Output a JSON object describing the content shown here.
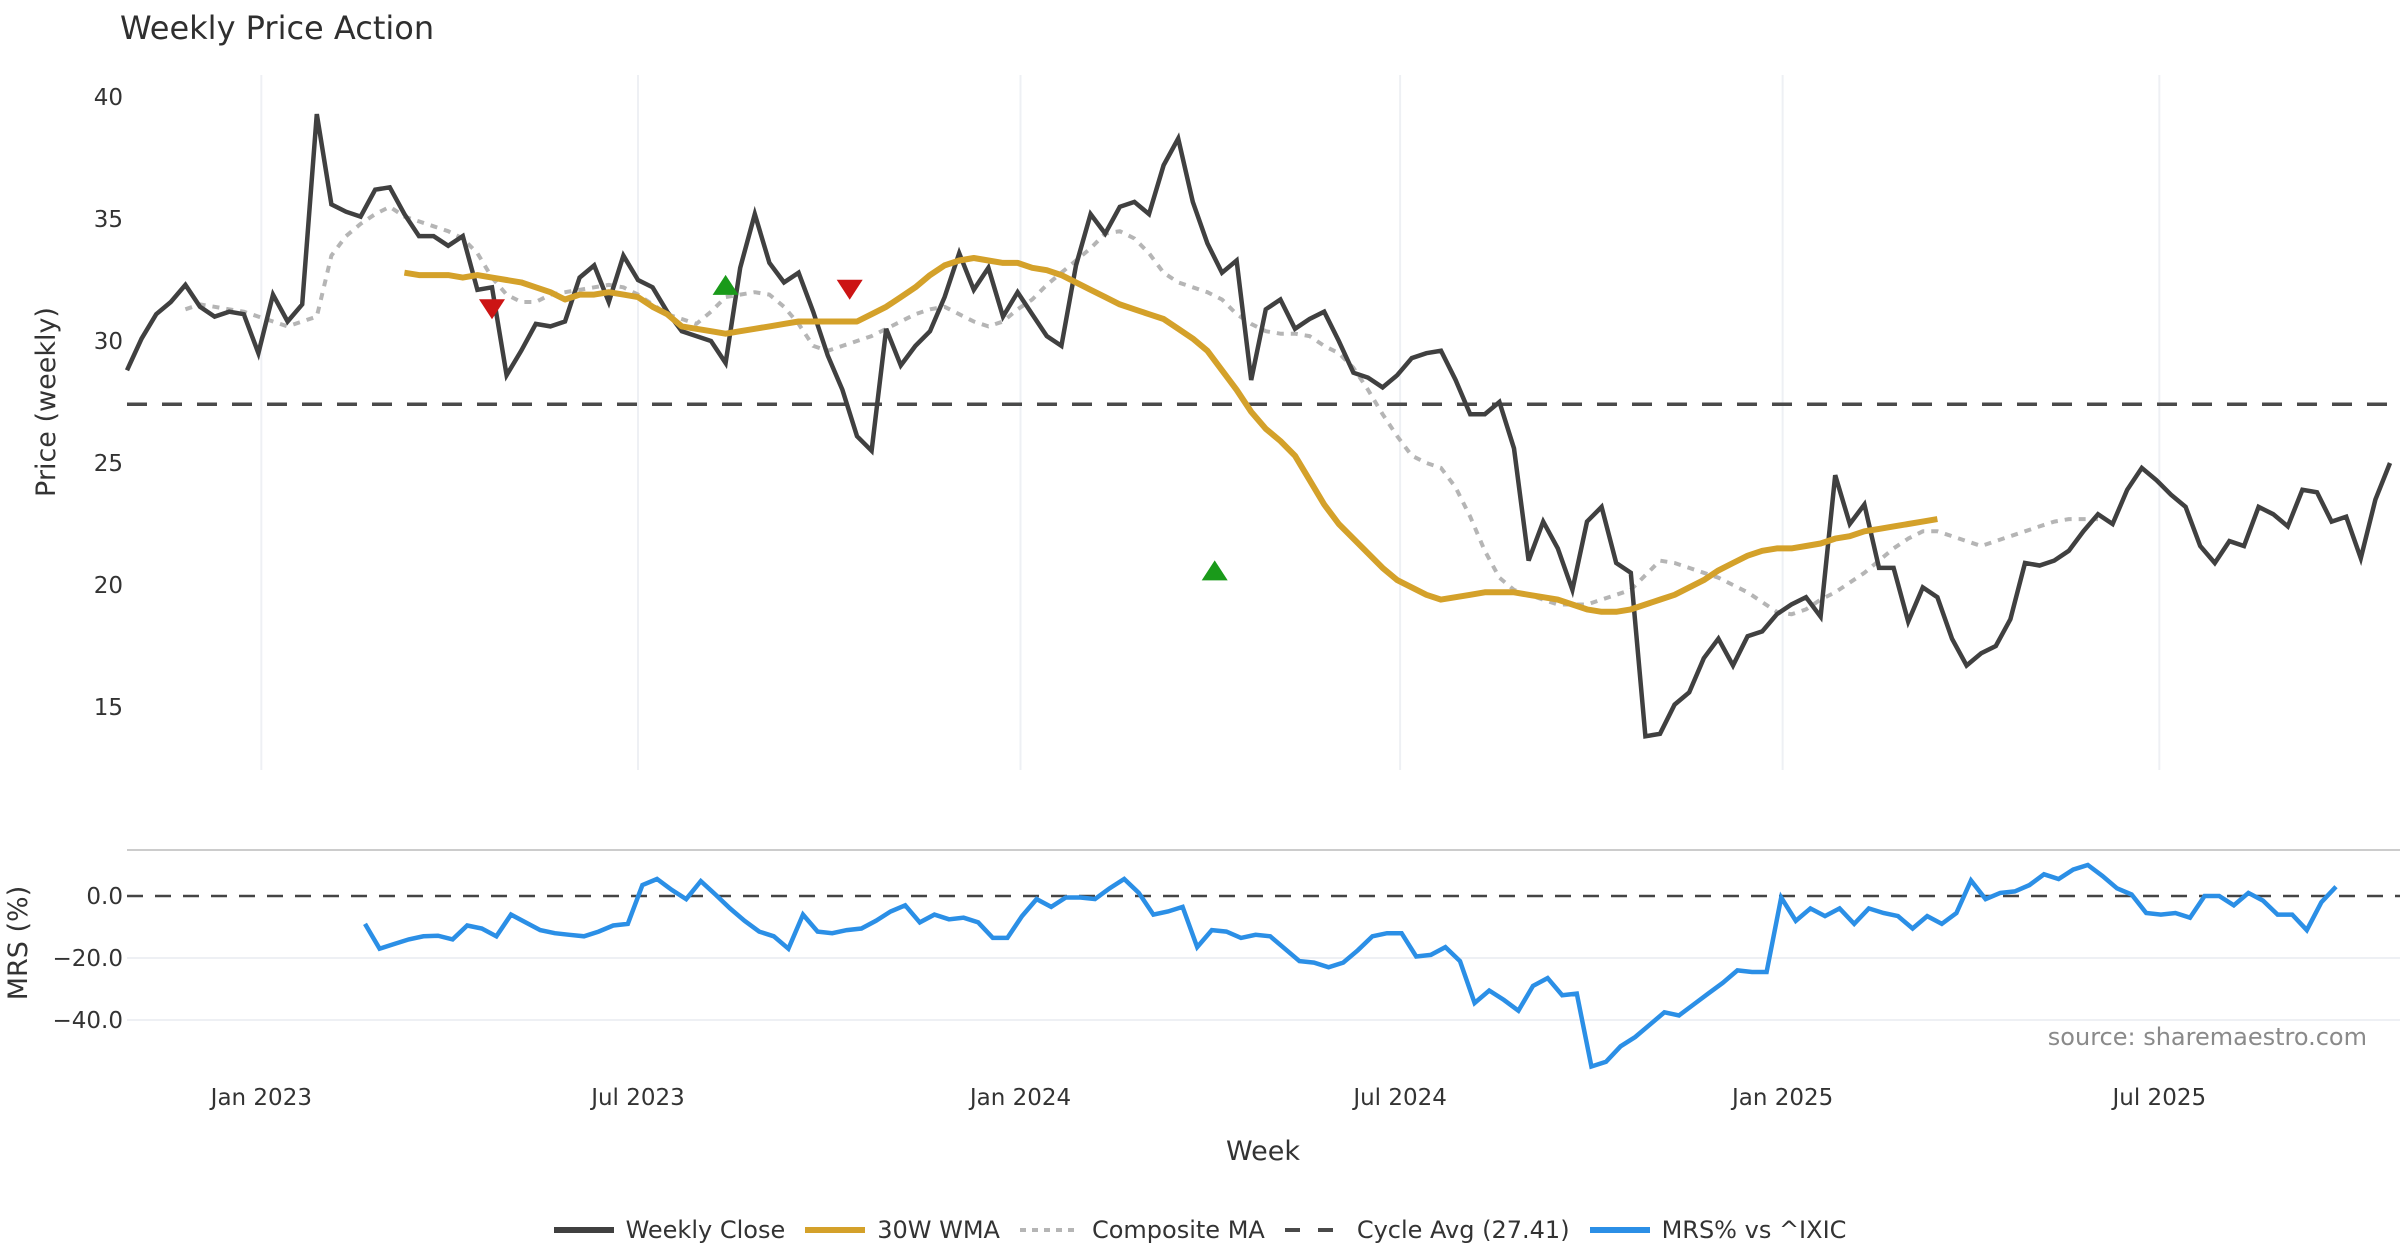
{
  "colors": {
    "weekly_close": "#404040",
    "wma": "#d4a12a",
    "composite_ma": "#b5b5b5",
    "cycle_avg": "#4a4a4a",
    "mrs": "#2b8fe6",
    "buy_marker": "#1a9a1a",
    "sell_marker": "#cc1414",
    "grid": "#eef0f4",
    "separator": "#cccccc"
  },
  "chart_data": [
    {
      "type": "line",
      "title": "Weekly Price Action",
      "xlabel": "Week",
      "ylabel": "Price (weekly)",
      "ylim": [
        12.5,
        41
      ],
      "yticks": [
        40,
        35,
        30,
        25,
        20,
        15
      ],
      "x_unit": "week index (0 = first plotted week, Nov 2022)",
      "xlim": [
        0,
        155.5
      ],
      "xticks": [
        {
          "week": 9.2,
          "label": "Jan 2023"
        },
        {
          "week": 35,
          "label": "Jul 2023"
        },
        {
          "week": 61.2,
          "label": "Jan 2024"
        },
        {
          "week": 87.2,
          "label": "Jul 2024"
        },
        {
          "week": 113.4,
          "label": "Jan 2025"
        },
        {
          "week": 139.2,
          "label": "Jul 2025"
        }
      ],
      "grid": true,
      "series": [
        {
          "name": "Weekly Close",
          "start_week": 0,
          "values": [
            28.8,
            30.1,
            31.1,
            31.6,
            32.3,
            31.4,
            31.0,
            31.2,
            31.1,
            29.5,
            31.9,
            30.8,
            31.5,
            39.3,
            35.6,
            35.3,
            35.1,
            36.2,
            36.3,
            35.2,
            34.3,
            34.3,
            33.9,
            34.3,
            32.1,
            32.2,
            28.6,
            29.6,
            30.7,
            30.6,
            30.8,
            32.6,
            33.1,
            31.6,
            33.5,
            32.5,
            32.2,
            31.2,
            30.4,
            30.2,
            30.0,
            29.1,
            33.0,
            35.2,
            33.2,
            32.4,
            32.8,
            31.2,
            29.4,
            28.0,
            26.1,
            25.5,
            30.5,
            29.0,
            29.8,
            30.4,
            31.8,
            33.6,
            32.1,
            33.0,
            31.0,
            32.0,
            31.1,
            30.2,
            29.8,
            33.1,
            35.2,
            34.4,
            35.5,
            35.7,
            35.2,
            37.2,
            38.3,
            35.7,
            34.0,
            32.8,
            33.3,
            28.4,
            31.3,
            31.7,
            30.5,
            30.9,
            31.2,
            30.0,
            28.7,
            28.5,
            28.1,
            28.6,
            29.3,
            29.5,
            29.6,
            28.4,
            27.0,
            27.0,
            27.5,
            25.6,
            21.0,
            22.6,
            21.5,
            19.8,
            22.6,
            23.2,
            20.9,
            20.5,
            13.8,
            13.9,
            15.1,
            15.6,
            17.0,
            17.8,
            16.7,
            17.9,
            18.1,
            18.8,
            19.2,
            19.5,
            18.7,
            24.5,
            22.5,
            23.3,
            20.7,
            20.7,
            18.5,
            19.9,
            19.5,
            17.8,
            16.7,
            17.2,
            17.5,
            18.6,
            20.9,
            20.8,
            21.0,
            21.4,
            22.2,
            22.9,
            22.5,
            23.9,
            24.8,
            24.3,
            23.7,
            23.2,
            21.6,
            20.9,
            21.8,
            21.6,
            23.2,
            22.9,
            22.4,
            23.9,
            23.8,
            22.6,
            22.8,
            21.1,
            23.5,
            25.0
          ]
        },
        {
          "name": "30W WMA",
          "start_week": 19,
          "values": [
            32.8,
            32.7,
            32.7,
            32.7,
            32.6,
            32.7,
            32.6,
            32.5,
            32.4,
            32.2,
            32.0,
            31.7,
            31.9,
            31.9,
            32.0,
            31.9,
            31.8,
            31.4,
            31.1,
            30.6,
            30.5,
            30.4,
            30.3,
            30.4,
            30.5,
            30.6,
            30.7,
            30.8,
            30.8,
            30.8,
            30.8,
            30.8,
            31.1,
            31.4,
            31.8,
            32.2,
            32.7,
            33.1,
            33.3,
            33.4,
            33.3,
            33.2,
            33.2,
            33.0,
            32.9,
            32.7,
            32.4,
            32.1,
            31.8,
            31.5,
            31.3,
            31.1,
            30.9,
            30.5,
            30.1,
            29.6,
            28.8,
            28.0,
            27.1,
            26.4,
            25.9,
            25.3,
            24.3,
            23.3,
            22.5,
            21.9,
            21.3,
            20.7,
            20.2,
            19.9,
            19.6,
            19.4,
            19.5,
            19.6,
            19.7,
            19.7,
            19.7,
            19.6,
            19.5,
            19.4,
            19.2,
            19.0,
            18.9,
            18.9,
            19.0,
            19.2,
            19.4,
            19.6,
            19.9,
            20.2,
            20.6,
            20.9,
            21.2,
            21.4,
            21.5,
            21.5,
            21.6,
            21.7,
            21.9,
            22.0,
            22.2,
            22.3,
            22.4,
            22.5,
            22.6,
            22.7
          ]
        },
        {
          "name": "Composite MA",
          "start_week": 4,
          "values": [
            31.3,
            31.5,
            31.4,
            31.3,
            31.2,
            31.0,
            30.8,
            30.6,
            30.8,
            31.0,
            33.5,
            34.3,
            34.8,
            35.2,
            35.5,
            35.1,
            34.9,
            34.7,
            34.5,
            34.2,
            33.6,
            32.6,
            31.9,
            31.6,
            31.6,
            31.9,
            32.0,
            32.1,
            32.2,
            32.3,
            32.2,
            31.9,
            31.5,
            31.1,
            30.9,
            30.7,
            31.2,
            31.8,
            31.9,
            32.0,
            31.9,
            31.4,
            30.7,
            29.8,
            29.6,
            29.8,
            30.0,
            30.2,
            30.5,
            30.8,
            31.1,
            31.3,
            31.4,
            31.1,
            30.8,
            30.6,
            30.8,
            31.3,
            31.7,
            32.3,
            32.8,
            33.3,
            33.8,
            34.4,
            34.5,
            34.2,
            33.6,
            32.8,
            32.4,
            32.2,
            32.0,
            31.7,
            31.1,
            30.7,
            30.4,
            30.3,
            30.3,
            30.2,
            29.8,
            29.5,
            28.9,
            28.0,
            27.0,
            26.1,
            25.3,
            25.0,
            24.8,
            24.0,
            22.8,
            21.4,
            20.3,
            19.8,
            19.6,
            19.4,
            19.2,
            19.2,
            19.2,
            19.4,
            19.6,
            19.8,
            20.4,
            21.0,
            20.9,
            20.7,
            20.5,
            20.3,
            20.0,
            19.7,
            19.3,
            18.9,
            18.8,
            19.0,
            19.4,
            19.7,
            20.1,
            20.5,
            21.0,
            21.5,
            21.9,
            22.2,
            22.2,
            22.0,
            21.8,
            21.6,
            21.8,
            22.0,
            22.2,
            22.4,
            22.6,
            22.7,
            22.7,
            22.7
          ]
        },
        {
          "name": "Cycle Avg (27.41)",
          "constant": 27.41
        }
      ],
      "markers": [
        {
          "type": "sell",
          "week": 25,
          "value": 31.3
        },
        {
          "type": "buy",
          "week": 41,
          "value": 32.3
        },
        {
          "type": "sell",
          "week": 49.5,
          "value": 32.1
        },
        {
          "type": "buy",
          "week": 74.5,
          "value": 20.6
        }
      ]
    },
    {
      "type": "line",
      "xlabel": "Week",
      "ylabel": "MRS (%)",
      "ylim": [
        -57,
        18
      ],
      "yticks": [
        {
          "value": 0,
          "label": "0.0"
        },
        {
          "value": -20,
          "label": "−20.0"
        },
        {
          "value": -40,
          "label": "−40.0"
        }
      ],
      "reference_line": 0,
      "series": [
        {
          "name": "MRS% vs ^IXIC",
          "start_week": 16.3,
          "values": [
            -9,
            -17,
            -15.5,
            -14,
            -13,
            -12.8,
            -14,
            -9.5,
            -10.5,
            -13,
            -6,
            -8.5,
            -11,
            -12,
            -12.5,
            -13,
            -11.5,
            -9.5,
            -9,
            3.5,
            5.5,
            2,
            -1,
            4.8,
            0.5,
            -4,
            -8,
            -11.5,
            -13,
            -17,
            -6,
            -11.5,
            -12,
            -11,
            -10.5,
            -8,
            -5,
            -3,
            -8.5,
            -6,
            -7.5,
            -7,
            -8.5,
            -13.5,
            -13.5,
            -6.5,
            -1,
            -3.5,
            -0.5,
            -0.5,
            -1,
            2.5,
            5.5,
            1,
            -6,
            -5,
            -3.5,
            -16.5,
            -11,
            -11.5,
            -13.5,
            -12.5,
            -13,
            -17,
            -21,
            -21.5,
            -23,
            -21.5,
            -17.5,
            -13,
            -12,
            -12,
            -19.5,
            -19,
            -16.5,
            -21,
            -34.5,
            -30.5,
            -33.5,
            -37,
            -29,
            -26.5,
            -32,
            -31.5,
            -55,
            -53.5,
            -48.5,
            -45.5,
            -41.5,
            -37.5,
            -38.5,
            -35,
            -31.5,
            -28,
            -24,
            -24.5,
            -24.5,
            -0.5,
            -8,
            -4,
            -6.5,
            -4,
            -9,
            -4,
            -5.5,
            -6.5,
            -10.5,
            -6.5,
            -9,
            -5.5,
            5,
            -1,
            1,
            1.5,
            3.5,
            7,
            5.5,
            8.5,
            10,
            6.5,
            2.5,
            0.5,
            -5.5,
            -6,
            -5.5,
            -7,
            0,
            0,
            -3,
            1,
            -1.5,
            -6,
            -6,
            -11,
            -2,
            3
          ]
        }
      ]
    }
  ],
  "chart": {
    "title": "Weekly Price Action",
    "y_axis_title": "Price (weekly)",
    "mrs_axis_title": "MRS (%)",
    "x_axis_title": "Week",
    "source": "source: sharemaestro.com"
  },
  "legend": [
    {
      "label": "Weekly Close",
      "style": "solid",
      "color_key": "weekly_close"
    },
    {
      "label": "30W WMA",
      "style": "solid",
      "color_key": "wma"
    },
    {
      "label": "Composite MA",
      "style": "dotted",
      "color_key": "composite_ma"
    },
    {
      "label": "Cycle Avg (27.41)",
      "style": "dashed",
      "color_key": "cycle_avg"
    },
    {
      "label": "MRS% vs ^IXIC",
      "style": "solid",
      "color_key": "mrs"
    }
  ]
}
